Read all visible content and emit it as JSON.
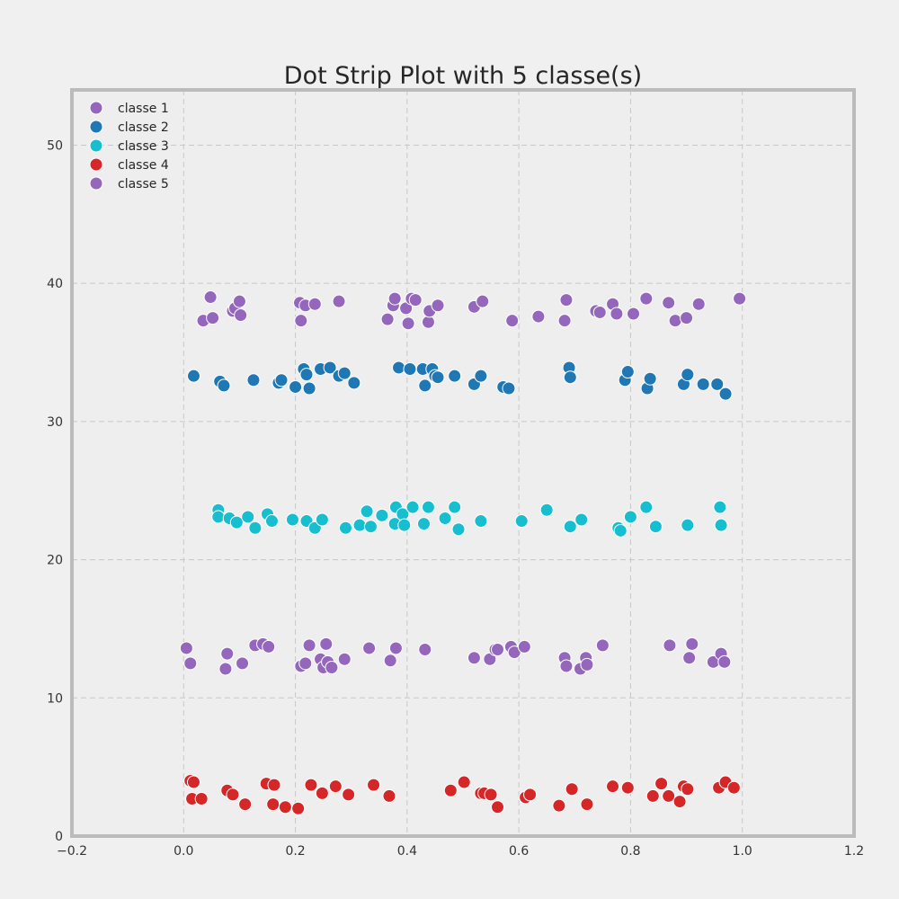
{
  "chart_data": {
    "type": "scatter",
    "title": "Dot Strip Plot with 5 classe(s)",
    "xlabel": "",
    "ylabel": "",
    "xlim": [
      -0.2,
      1.2
    ],
    "ylim": [
      0,
      54
    ],
    "x_ticks": [
      -0.2,
      0.0,
      0.2,
      0.4,
      0.6,
      0.8,
      1.0,
      1.2
    ],
    "x_tick_labels": [
      "−0.2",
      "0.0",
      "0.2",
      "0.4",
      "0.6",
      "0.8",
      "1.0",
      "1.2"
    ],
    "y_ticks": [
      0,
      10,
      20,
      30,
      40,
      50
    ],
    "y_tick_labels": [
      "0",
      "10",
      "20",
      "30",
      "40",
      "50"
    ],
    "grid": true,
    "legend_position": "top-left",
    "series": [
      {
        "name": "classe 1",
        "color": "#9467bd",
        "points": [
          [
            0.005,
            13.6
          ],
          [
            0.012,
            12.5
          ],
          [
            0.075,
            12.1
          ],
          [
            0.078,
            13.2
          ],
          [
            0.105,
            12.5
          ],
          [
            0.128,
            13.8
          ],
          [
            0.142,
            13.9
          ],
          [
            0.152,
            13.7
          ],
          [
            0.21,
            12.3
          ],
          [
            0.218,
            12.5
          ],
          [
            0.225,
            13.8
          ],
          [
            0.245,
            12.8
          ],
          [
            0.25,
            12.2
          ],
          [
            0.255,
            13.9
          ],
          [
            0.258,
            12.6
          ],
          [
            0.265,
            12.2
          ],
          [
            0.288,
            12.8
          ],
          [
            0.332,
            13.6
          ],
          [
            0.37,
            12.7
          ],
          [
            0.38,
            13.6
          ],
          [
            0.432,
            13.5
          ],
          [
            0.52,
            12.9
          ],
          [
            0.548,
            12.8
          ],
          [
            0.558,
            13.5
          ],
          [
            0.562,
            13.5
          ],
          [
            0.586,
            13.7
          ],
          [
            0.592,
            13.3
          ],
          [
            0.61,
            13.7
          ],
          [
            0.682,
            12.9
          ],
          [
            0.685,
            12.3
          ],
          [
            0.71,
            12.1
          ],
          [
            0.72,
            12.9
          ],
          [
            0.722,
            12.4
          ],
          [
            0.75,
            13.8
          ],
          [
            0.87,
            13.8
          ],
          [
            0.905,
            12.9
          ],
          [
            0.91,
            13.9
          ],
          [
            0.948,
            12.6
          ],
          [
            0.962,
            13.2
          ],
          [
            0.968,
            12.6
          ]
        ]
      },
      {
        "name": "classe 2",
        "color": "#1f77b4",
        "points": [
          [
            0.018,
            33.3
          ],
          [
            0.065,
            32.9
          ],
          [
            0.072,
            32.6
          ],
          [
            0.125,
            33.0
          ],
          [
            0.17,
            32.8
          ],
          [
            0.175,
            33.0
          ],
          [
            0.2,
            32.5
          ],
          [
            0.215,
            33.8
          ],
          [
            0.22,
            33.4
          ],
          [
            0.225,
            32.4
          ],
          [
            0.245,
            33.8
          ],
          [
            0.262,
            33.9
          ],
          [
            0.278,
            33.3
          ],
          [
            0.288,
            33.5
          ],
          [
            0.305,
            32.8
          ],
          [
            0.385,
            33.9
          ],
          [
            0.405,
            33.8
          ],
          [
            0.428,
            33.8
          ],
          [
            0.432,
            32.6
          ],
          [
            0.445,
            33.8
          ],
          [
            0.45,
            33.3
          ],
          [
            0.455,
            33.2
          ],
          [
            0.485,
            33.3
          ],
          [
            0.52,
            32.7
          ],
          [
            0.532,
            33.3
          ],
          [
            0.572,
            32.5
          ],
          [
            0.582,
            32.4
          ],
          [
            0.69,
            33.9
          ],
          [
            0.692,
            33.2
          ],
          [
            0.79,
            33.0
          ],
          [
            0.795,
            33.6
          ],
          [
            0.83,
            32.4
          ],
          [
            0.835,
            33.1
          ],
          [
            0.895,
            32.7
          ],
          [
            0.902,
            33.4
          ],
          [
            0.93,
            32.7
          ],
          [
            0.955,
            32.7
          ],
          [
            0.97,
            32.0
          ]
        ]
      },
      {
        "name": "classe 3",
        "color": "#17becf",
        "points": [
          [
            0.062,
            23.6
          ],
          [
            0.062,
            23.1
          ],
          [
            0.082,
            23.0
          ],
          [
            0.095,
            22.7
          ],
          [
            0.115,
            23.1
          ],
          [
            0.128,
            22.3
          ],
          [
            0.15,
            23.3
          ],
          [
            0.158,
            22.8
          ],
          [
            0.195,
            22.9
          ],
          [
            0.22,
            22.8
          ],
          [
            0.235,
            22.3
          ],
          [
            0.248,
            22.9
          ],
          [
            0.29,
            22.3
          ],
          [
            0.315,
            22.5
          ],
          [
            0.328,
            23.5
          ],
          [
            0.335,
            22.4
          ],
          [
            0.355,
            23.2
          ],
          [
            0.378,
            22.6
          ],
          [
            0.38,
            23.8
          ],
          [
            0.392,
            23.3
          ],
          [
            0.395,
            22.5
          ],
          [
            0.41,
            23.8
          ],
          [
            0.43,
            22.6
          ],
          [
            0.438,
            23.8
          ],
          [
            0.468,
            23.0
          ],
          [
            0.485,
            23.8
          ],
          [
            0.492,
            22.2
          ],
          [
            0.532,
            22.8
          ],
          [
            0.605,
            22.8
          ],
          [
            0.65,
            23.6
          ],
          [
            0.692,
            22.4
          ],
          [
            0.712,
            22.9
          ],
          [
            0.778,
            22.3
          ],
          [
            0.782,
            22.1
          ],
          [
            0.8,
            23.1
          ],
          [
            0.828,
            23.8
          ],
          [
            0.845,
            22.4
          ],
          [
            0.902,
            22.5
          ],
          [
            0.96,
            23.8
          ],
          [
            0.962,
            22.5
          ]
        ]
      },
      {
        "name": "classe 4",
        "color": "#d62728",
        "points": [
          [
            0.012,
            4.0
          ],
          [
            0.015,
            2.7
          ],
          [
            0.018,
            3.9
          ],
          [
            0.032,
            2.7
          ],
          [
            0.078,
            3.3
          ],
          [
            0.088,
            3.0
          ],
          [
            0.11,
            2.3
          ],
          [
            0.148,
            3.8
          ],
          [
            0.16,
            2.3
          ],
          [
            0.162,
            3.7
          ],
          [
            0.182,
            2.1
          ],
          [
            0.205,
            2.0
          ],
          [
            0.228,
            3.7
          ],
          [
            0.248,
            3.1
          ],
          [
            0.272,
            3.6
          ],
          [
            0.295,
            3.0
          ],
          [
            0.34,
            3.7
          ],
          [
            0.368,
            2.9
          ],
          [
            0.478,
            3.3
          ],
          [
            0.502,
            3.9
          ],
          [
            0.532,
            3.1
          ],
          [
            0.538,
            3.1
          ],
          [
            0.55,
            3.0
          ],
          [
            0.562,
            2.1
          ],
          [
            0.612,
            2.8
          ],
          [
            0.62,
            3.0
          ],
          [
            0.672,
            2.2
          ],
          [
            0.695,
            3.4
          ],
          [
            0.722,
            2.3
          ],
          [
            0.768,
            3.6
          ],
          [
            0.795,
            3.5
          ],
          [
            0.84,
            2.9
          ],
          [
            0.855,
            3.8
          ],
          [
            0.868,
            2.9
          ],
          [
            0.888,
            2.5
          ],
          [
            0.895,
            3.6
          ],
          [
            0.902,
            3.4
          ],
          [
            0.958,
            3.5
          ],
          [
            0.97,
            3.9
          ],
          [
            0.985,
            3.5
          ]
        ]
      },
      {
        "name": "classe 5",
        "color": "#9467bd",
        "points": [
          [
            0.035,
            37.3
          ],
          [
            0.048,
            39.0
          ],
          [
            0.052,
            37.5
          ],
          [
            0.088,
            38.0
          ],
          [
            0.092,
            38.2
          ],
          [
            0.1,
            38.7
          ],
          [
            0.102,
            37.7
          ],
          [
            0.208,
            38.6
          ],
          [
            0.21,
            37.3
          ],
          [
            0.218,
            38.4
          ],
          [
            0.235,
            38.5
          ],
          [
            0.278,
            38.7
          ],
          [
            0.365,
            37.4
          ],
          [
            0.375,
            38.4
          ],
          [
            0.378,
            38.9
          ],
          [
            0.398,
            38.2
          ],
          [
            0.402,
            37.1
          ],
          [
            0.408,
            38.9
          ],
          [
            0.415,
            38.8
          ],
          [
            0.438,
            37.2
          ],
          [
            0.44,
            38.0
          ],
          [
            0.455,
            38.4
          ],
          [
            0.52,
            38.3
          ],
          [
            0.535,
            38.7
          ],
          [
            0.588,
            37.3
          ],
          [
            0.635,
            37.6
          ],
          [
            0.682,
            37.3
          ],
          [
            0.685,
            38.8
          ],
          [
            0.738,
            38.0
          ],
          [
            0.745,
            37.9
          ],
          [
            0.768,
            38.5
          ],
          [
            0.775,
            37.8
          ],
          [
            0.805,
            37.8
          ],
          [
            0.828,
            38.9
          ],
          [
            0.868,
            38.6
          ],
          [
            0.88,
            37.3
          ],
          [
            0.9,
            37.5
          ],
          [
            0.922,
            38.5
          ],
          [
            0.995,
            38.9
          ]
        ]
      }
    ]
  }
}
